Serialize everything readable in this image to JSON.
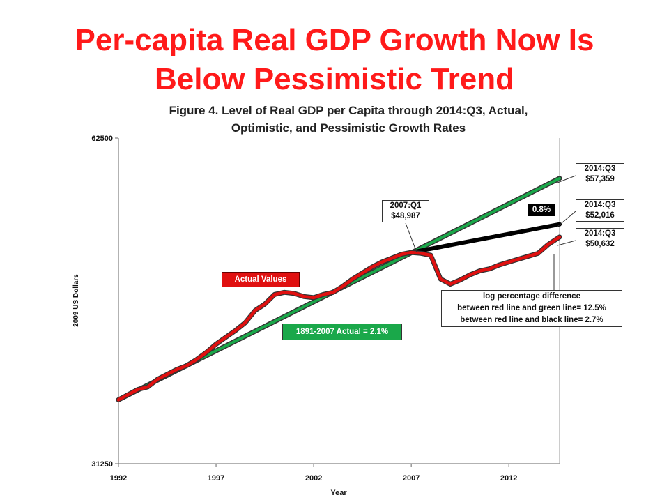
{
  "slide": {
    "title_line1": "Per-capita Real GDP Growth Now Is",
    "title_line2": "Below Pessimistic Trend"
  },
  "figure": {
    "title_line1": "Figure 4. Level of Real GDP per Capita through 2014:Q3, Actual,",
    "title_line2": "Optimistic, and Pessimistic Growth Rates"
  },
  "callouts": {
    "green_end": {
      "period": "2014:Q3",
      "value": "$57,359"
    },
    "black_end": {
      "period": "2014:Q3",
      "value": "$52,016"
    },
    "red_end": {
      "period": "2014:Q3",
      "value": "$50,632"
    },
    "peak": {
      "period": "2007:Q1",
      "value": "$48,987"
    },
    "black_rate": "0.8%",
    "actual_label": "Actual Values",
    "trend_label": "1891-2007 Actual = 2.1%",
    "note": [
      "log percentage difference",
      "between red line and green line= 12.5%",
      "between red line and black line= 2.7%"
    ]
  },
  "colors": {
    "title": "#ff1a1a",
    "actual": "#e01010",
    "trend_optimistic": "#1aa84a",
    "trend_pessimistic": "#000000",
    "actual_label_bg": "#e01010",
    "trend_label_bg": "#1aa84a",
    "rate_label_bg": "#000000"
  },
  "chart_data": {
    "type": "line",
    "xlabel": "Year",
    "ylabel": "2009 US Dollars",
    "xlim": [
      1992,
      2014.6
    ],
    "ylim": [
      31250,
      62500
    ],
    "y_scale": "log",
    "x_ticks": [
      "1992",
      "1997",
      "2002",
      "2007",
      "2012"
    ],
    "y_ticks": [
      "31250",
      "62500"
    ],
    "grid": false,
    "series": [
      {
        "name": "1891-2007 Actual = 2.1%",
        "color": "#1aa84a",
        "x": [
          1992,
          2014.6
        ],
        "y": [
          35800,
          57359
        ]
      },
      {
        "name": "0.8%",
        "color": "#000000",
        "x": [
          2007,
          2014.6
        ],
        "y": [
          48987,
          52016
        ]
      },
      {
        "name": "Actual Values",
        "color": "#e01010",
        "x": [
          1992,
          1992.5,
          1993,
          1993.5,
          1994,
          1994.5,
          1995,
          1995.5,
          1996,
          1996.5,
          1997,
          1997.5,
          1998,
          1998.5,
          1999,
          1999.5,
          2000,
          2000.5,
          2001,
          2001.5,
          2002,
          2002.5,
          2003,
          2003.5,
          2004,
          2004.5,
          2005,
          2005.5,
          2006,
          2006.5,
          2007,
          2007.5,
          2008,
          2008.5,
          2009,
          2009.5,
          2010,
          2010.5,
          2011,
          2011.5,
          2012,
          2012.5,
          2013,
          2013.5,
          2014,
          2014.6
        ],
        "y": [
          35800,
          36200,
          36600,
          36800,
          37400,
          37800,
          38200,
          38500,
          39000,
          39600,
          40300,
          40900,
          41500,
          42200,
          43300,
          43900,
          44800,
          45000,
          44900,
          44600,
          44500,
          44800,
          45000,
          45600,
          46300,
          46900,
          47500,
          48000,
          48400,
          48800,
          48987,
          48900,
          48700,
          46300,
          45800,
          46200,
          46700,
          47100,
          47300,
          47700,
          48000,
          48300,
          48600,
          48900,
          49800,
          50632
        ]
      }
    ]
  }
}
